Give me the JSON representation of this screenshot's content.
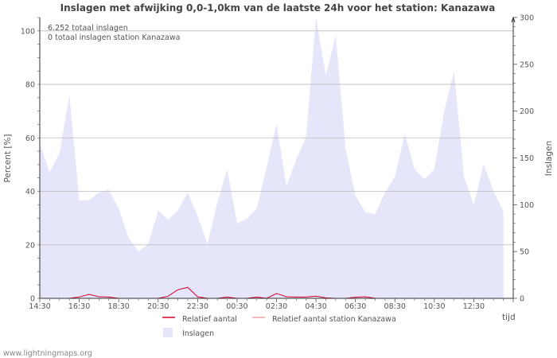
{
  "chart_data": {
    "type": "area",
    "title": "Inslagen met afwijking 0,0-1,0km van de laatste 24h voor het station: Kanazawa",
    "ylabel_left": "Percent   [%]",
    "ylabel_right": "Inslagen",
    "xlabel": "tijd",
    "ylim_left": [
      0,
      105
    ],
    "ylim_right": [
      0,
      300
    ],
    "yticks_left": [
      0,
      20,
      40,
      60,
      80,
      100
    ],
    "yticks_right": [
      0,
      50,
      100,
      150,
      200,
      250,
      300
    ],
    "x_ticklabels": [
      "14:30",
      "16:30",
      "18:30",
      "20:30",
      "22:30",
      "00:30",
      "02:30",
      "04:30",
      "06:30",
      "08:30",
      "10:30",
      "12:30"
    ],
    "annotations": [
      "6.252 totaal inslagen",
      "0 totaal inslagen station Kanazawa"
    ],
    "legend": {
      "relatief": "Relatief aantal",
      "relatief_station": "Relatief aantal station Kanazawa",
      "inslagen": "Inslagen"
    },
    "colors": {
      "inslagen_fill": "#e6e6fa",
      "relatief": "#e0002a",
      "relatief_station": "#f3a3a8",
      "grid": "#bbbbbb",
      "text": "#444444"
    },
    "series": [
      {
        "name": "Inslagen",
        "axis": "right",
        "values": [
          165,
          135,
          155,
          217,
          105,
          105,
          113,
          116,
          96,
          65,
          50,
          58,
          94,
          84,
          94,
          113,
          88,
          58,
          102,
          138,
          80,
          85,
          96,
          140,
          186,
          120,
          148,
          173,
          300,
          238,
          281,
          160,
          110,
          92,
          90,
          113,
          130,
          176,
          138,
          127,
          138,
          200,
          243,
          130,
          100,
          143,
          115,
          93
        ]
      },
      {
        "name": "Relatief aantal",
        "axis": "left",
        "values": [
          0,
          0,
          0,
          0,
          0.5,
          1.5,
          0.6,
          0.5,
          0,
          0,
          0,
          0,
          0,
          0.8,
          3.2,
          4.1,
          0.6,
          0,
          0,
          0.5,
          0,
          0,
          0.5,
          0,
          1.8,
          0.6,
          0.5,
          0.5,
          0.8,
          0.2,
          0,
          0,
          0.4,
          0.6,
          0,
          0,
          0,
          0,
          0,
          0,
          0,
          0,
          0,
          0,
          0,
          0,
          0,
          0
        ]
      },
      {
        "name": "Relatief aantal station Kanazawa",
        "axis": "left",
        "values": [
          0,
          0,
          0,
          0,
          0,
          0,
          0,
          0,
          0,
          0,
          0,
          0,
          0,
          0,
          0,
          0,
          0,
          0,
          0,
          0,
          0,
          0,
          0,
          0,
          0,
          0,
          0,
          0,
          0,
          0,
          0,
          0,
          0,
          0,
          0,
          0,
          0,
          0,
          0,
          0,
          0,
          0,
          0,
          0,
          0,
          0,
          0,
          0
        ]
      }
    ]
  },
  "footer": "www.lightningmaps.org"
}
